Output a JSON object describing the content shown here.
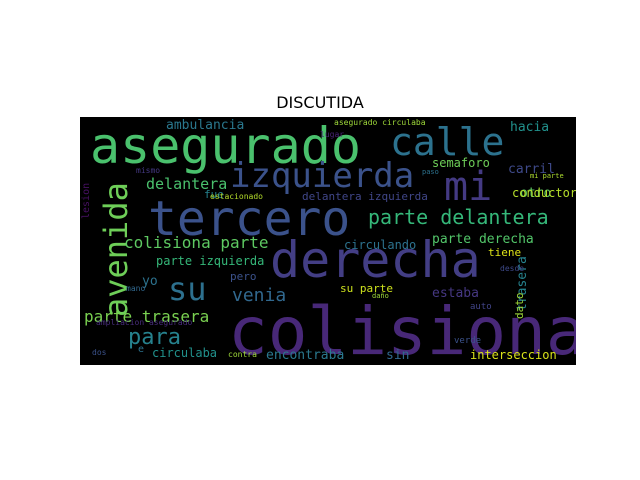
{
  "title": "DISCUTIDA",
  "words": [
    {
      "text": "colisiona",
      "color": "#482878"
    },
    {
      "text": "asegurado",
      "color": "#4ac16d"
    },
    {
      "text": "tercero",
      "color": "#3b528b"
    },
    {
      "text": "derecha",
      "color": "#433e85"
    },
    {
      "text": "calle",
      "color": "#2c728e"
    },
    {
      "text": "mi",
      "color": "#443a83"
    },
    {
      "text": "izquierda",
      "color": "#3b528b"
    },
    {
      "text": "avenida",
      "color": "#6ece58"
    },
    {
      "text": "su",
      "color": "#2d708e"
    },
    {
      "text": "parte delantera",
      "color": "#35b779"
    },
    {
      "text": "para",
      "color": "#26828e"
    },
    {
      "text": "colisiona parte",
      "color": "#5ec962"
    },
    {
      "text": "venia",
      "color": "#31688e"
    },
    {
      "text": "parte trasera",
      "color": "#7ad151"
    },
    {
      "text": "delantera",
      "color": "#4ac16d"
    },
    {
      "text": "ambulancia",
      "color": "#2a788e"
    },
    {
      "text": "hacia",
      "color": "#21918c"
    },
    {
      "text": "parte izquierda",
      "color": "#35b779"
    },
    {
      "text": "carril",
      "color": "#3e4989"
    },
    {
      "text": "otro",
      "color": "#5ec962"
    },
    {
      "text": "semaforo",
      "color": "#6ece58"
    },
    {
      "text": "delantera izquierda",
      "color": "#404688"
    },
    {
      "text": "parte derecha",
      "color": "#52c569"
    },
    {
      "text": "conductor",
      "color": "#b5de2b"
    },
    {
      "text": "circulando",
      "color": "#2c728e"
    },
    {
      "text": "estaba",
      "color": "#453781"
    },
    {
      "text": "encontraba",
      "color": "#2a788e"
    },
    {
      "text": "circulaba",
      "color": "#21918c"
    },
    {
      "text": "interseccion",
      "color": "#d8e219"
    },
    {
      "text": "sin",
      "color": "#31688e"
    },
    {
      "text": "tiene",
      "color": "#dde318"
    },
    {
      "text": "trasera",
      "color": "#26828e"
    },
    {
      "text": "yo",
      "color": "#2c728e"
    },
    {
      "text": "pero",
      "color": "#3b528b"
    },
    {
      "text": "su parte",
      "color": "#cde11d"
    },
    {
      "text": "dato",
      "color": "#9fda3a"
    },
    {
      "text": "fue",
      "color": "#26828e"
    },
    {
      "text": "estacionado",
      "color": "#b5de2b"
    },
    {
      "text": "asegurado circulaba",
      "color": "#9fda3a"
    },
    {
      "text": "mismo",
      "color": "#443983"
    },
    {
      "text": "paso",
      "color": "#2c728e"
    },
    {
      "text": "mi parte",
      "color": "#addc30"
    },
    {
      "text": "desde",
      "color": "#3e4989"
    },
    {
      "text": "daño",
      "color": "#9fda3a"
    },
    {
      "text": "mano",
      "color": "#31688e"
    },
    {
      "text": "ampliacion asegurado",
      "color": "#472d7b"
    },
    {
      "text": "dos",
      "color": "#3b528b"
    },
    {
      "text": "e",
      "color": "#2c728e"
    },
    {
      "text": "contra",
      "color": "#a0da39"
    },
    {
      "text": "lesion",
      "color": "#471063"
    },
    {
      "text": "lugar",
      "color": "#482475"
    },
    {
      "text": "verde",
      "color": "#3b528b"
    },
    {
      "text": "auto",
      "color": "#414487"
    }
  ]
}
